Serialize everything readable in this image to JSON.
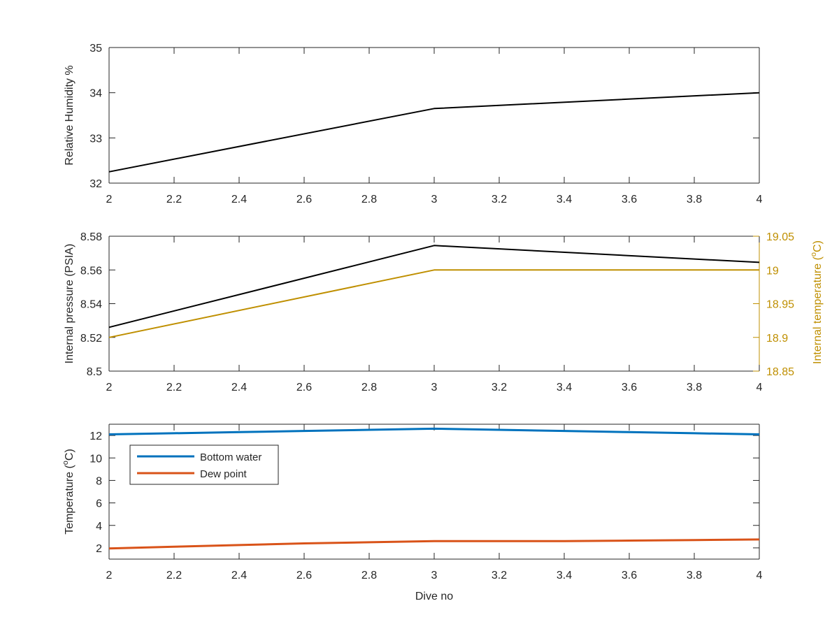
{
  "chart_data": [
    {
      "type": "line",
      "xlabel": "",
      "ylabel": "Relative Humidity %",
      "xlim": [
        2,
        4
      ],
      "ylim": [
        32,
        35
      ],
      "xticks": [
        2,
        2.2,
        2.4,
        2.6,
        2.8,
        3,
        3.2,
        3.4,
        3.6,
        3.8,
        4
      ],
      "xtick_labels": [
        "2",
        "2.2",
        "2.4",
        "2.6",
        "2.8",
        "3",
        "3.2",
        "3.4",
        "3.6",
        "3.8",
        "4"
      ],
      "yticks": [
        32,
        33,
        34,
        35
      ],
      "ytick_labels": [
        "32",
        "33",
        "34",
        "35"
      ],
      "grid": false,
      "series": [
        {
          "color": "#000000",
          "x": [
            2,
            3,
            4
          ],
          "y": [
            32.25,
            33.65,
            34.0
          ]
        }
      ]
    },
    {
      "type": "line",
      "xlabel": "",
      "ylabel": "Internal pressure (PSIA)",
      "y2label_text": "Internal temperature (",
      "y2label_unit": "C)",
      "y2label_sup": "o",
      "xlim": [
        2,
        4
      ],
      "ylim": [
        8.5,
        8.58
      ],
      "y2lim": [
        18.85,
        19.05
      ],
      "xticks": [
        2,
        2.2,
        2.4,
        2.6,
        2.8,
        3,
        3.2,
        3.4,
        3.6,
        3.8,
        4
      ],
      "xtick_labels": [
        "2",
        "2.2",
        "2.4",
        "2.6",
        "2.8",
        "3",
        "3.2",
        "3.4",
        "3.6",
        "3.8",
        "4"
      ],
      "yticks": [
        8.5,
        8.52,
        8.54,
        8.56,
        8.58
      ],
      "ytick_labels": [
        "8.5",
        "8.52",
        "8.54",
        "8.56",
        "8.58"
      ],
      "y2ticks": [
        18.85,
        18.9,
        18.95,
        19,
        19.05
      ],
      "y2tick_labels": [
        "18.85",
        "18.9",
        "18.95",
        "19",
        "19.05"
      ],
      "y2_color": "#bf8f00",
      "grid": false,
      "series": [
        {
          "color": "#000000",
          "axis": "left",
          "x": [
            2,
            3,
            4
          ],
          "y": [
            8.526,
            8.5745,
            8.5645
          ]
        },
        {
          "color": "#bf8f00",
          "axis": "right",
          "x": [
            2,
            3,
            4
          ],
          "y": [
            18.9,
            19.0,
            19.0
          ]
        }
      ]
    },
    {
      "type": "line",
      "xlabel": "Dive no",
      "ylabel_text": "Temperature (",
      "ylabel_unit": "C)",
      "ylabel_sup": "o",
      "xlim": [
        2,
        4
      ],
      "ylim": [
        1,
        13
      ],
      "xticks": [
        2,
        2.2,
        2.4,
        2.6,
        2.8,
        3,
        3.2,
        3.4,
        3.6,
        3.8,
        4
      ],
      "xtick_labels": [
        "2",
        "2.2",
        "2.4",
        "2.6",
        "2.8",
        "3",
        "3.2",
        "3.4",
        "3.6",
        "3.8",
        "4"
      ],
      "yticks": [
        2,
        4,
        6,
        8,
        10,
        12
      ],
      "ytick_labels": [
        "2",
        "4",
        "6",
        "8",
        "10",
        "12"
      ],
      "grid": false,
      "legend_position": "top-left",
      "series": [
        {
          "name": "Bottom water",
          "color": "#0072bd",
          "x": [
            2,
            2.2,
            2.4,
            2.6,
            2.8,
            3,
            3.2,
            3.4,
            3.6,
            3.8,
            4
          ],
          "y": [
            12.1,
            12.2,
            12.3,
            12.4,
            12.5,
            12.6,
            12.5,
            12.4,
            12.3,
            12.2,
            12.1
          ]
        },
        {
          "name": "Dew point",
          "color": "#d95319",
          "x": [
            2,
            2.2,
            2.4,
            2.6,
            2.8,
            3,
            3.2,
            3.4,
            3.6,
            3.8,
            4
          ],
          "y": [
            1.95,
            2.1,
            2.25,
            2.4,
            2.5,
            2.6,
            2.6,
            2.6,
            2.65,
            2.7,
            2.75
          ]
        }
      ]
    }
  ]
}
